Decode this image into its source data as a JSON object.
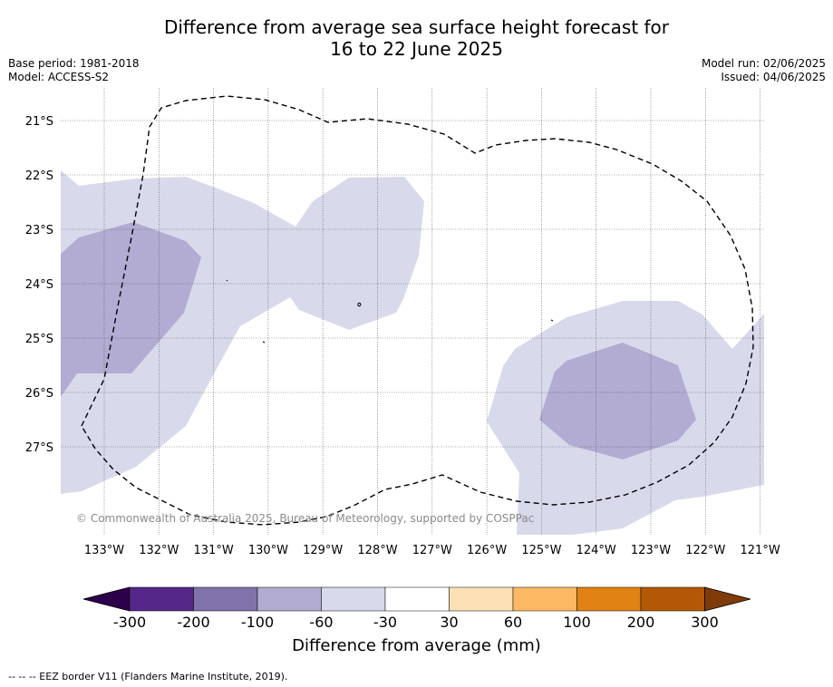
{
  "title_line1": "Difference from average sea surface height forecast for",
  "title_line2": "16 to 22 June 2025",
  "base_period": "Base period: 1981-2018",
  "model": "Model: ACCESS-S2",
  "model_run": "Model run: 02/06/2025",
  "issued": "Issued: 04/06/2025",
  "copyright": "© Commonwealth of Australia 2025, Bureau of Meteorology, supported by COSPPac",
  "footnote": "-- -- -- EEZ border V11 (Flanders Marine Institute, 2019).",
  "map": {
    "lat_labels": [
      "21°S",
      "22°S",
      "23°S",
      "24°S",
      "25°S",
      "26°S",
      "27°S"
    ],
    "lon_labels": [
      "133°W",
      "132°W",
      "131°W",
      "130°W",
      "129°W",
      "128°W",
      "127°W",
      "126°W",
      "125°W",
      "124°W",
      "123°W",
      "122°W",
      "121°W"
    ]
  },
  "colorbar": {
    "title": "Difference from average (mm)",
    "tick_labels": [
      "-300",
      "-200",
      "-100",
      "-60",
      "-30",
      "30",
      "60",
      "100",
      "200",
      "300"
    ],
    "colors": [
      "#2d004b",
      "#542788",
      "#8073ac",
      "#b2abd2",
      "#d8daeb",
      "#ffffff",
      "#fee0b6",
      "#fdb863",
      "#e08214",
      "#b35806",
      "#7f3b08"
    ]
  }
}
